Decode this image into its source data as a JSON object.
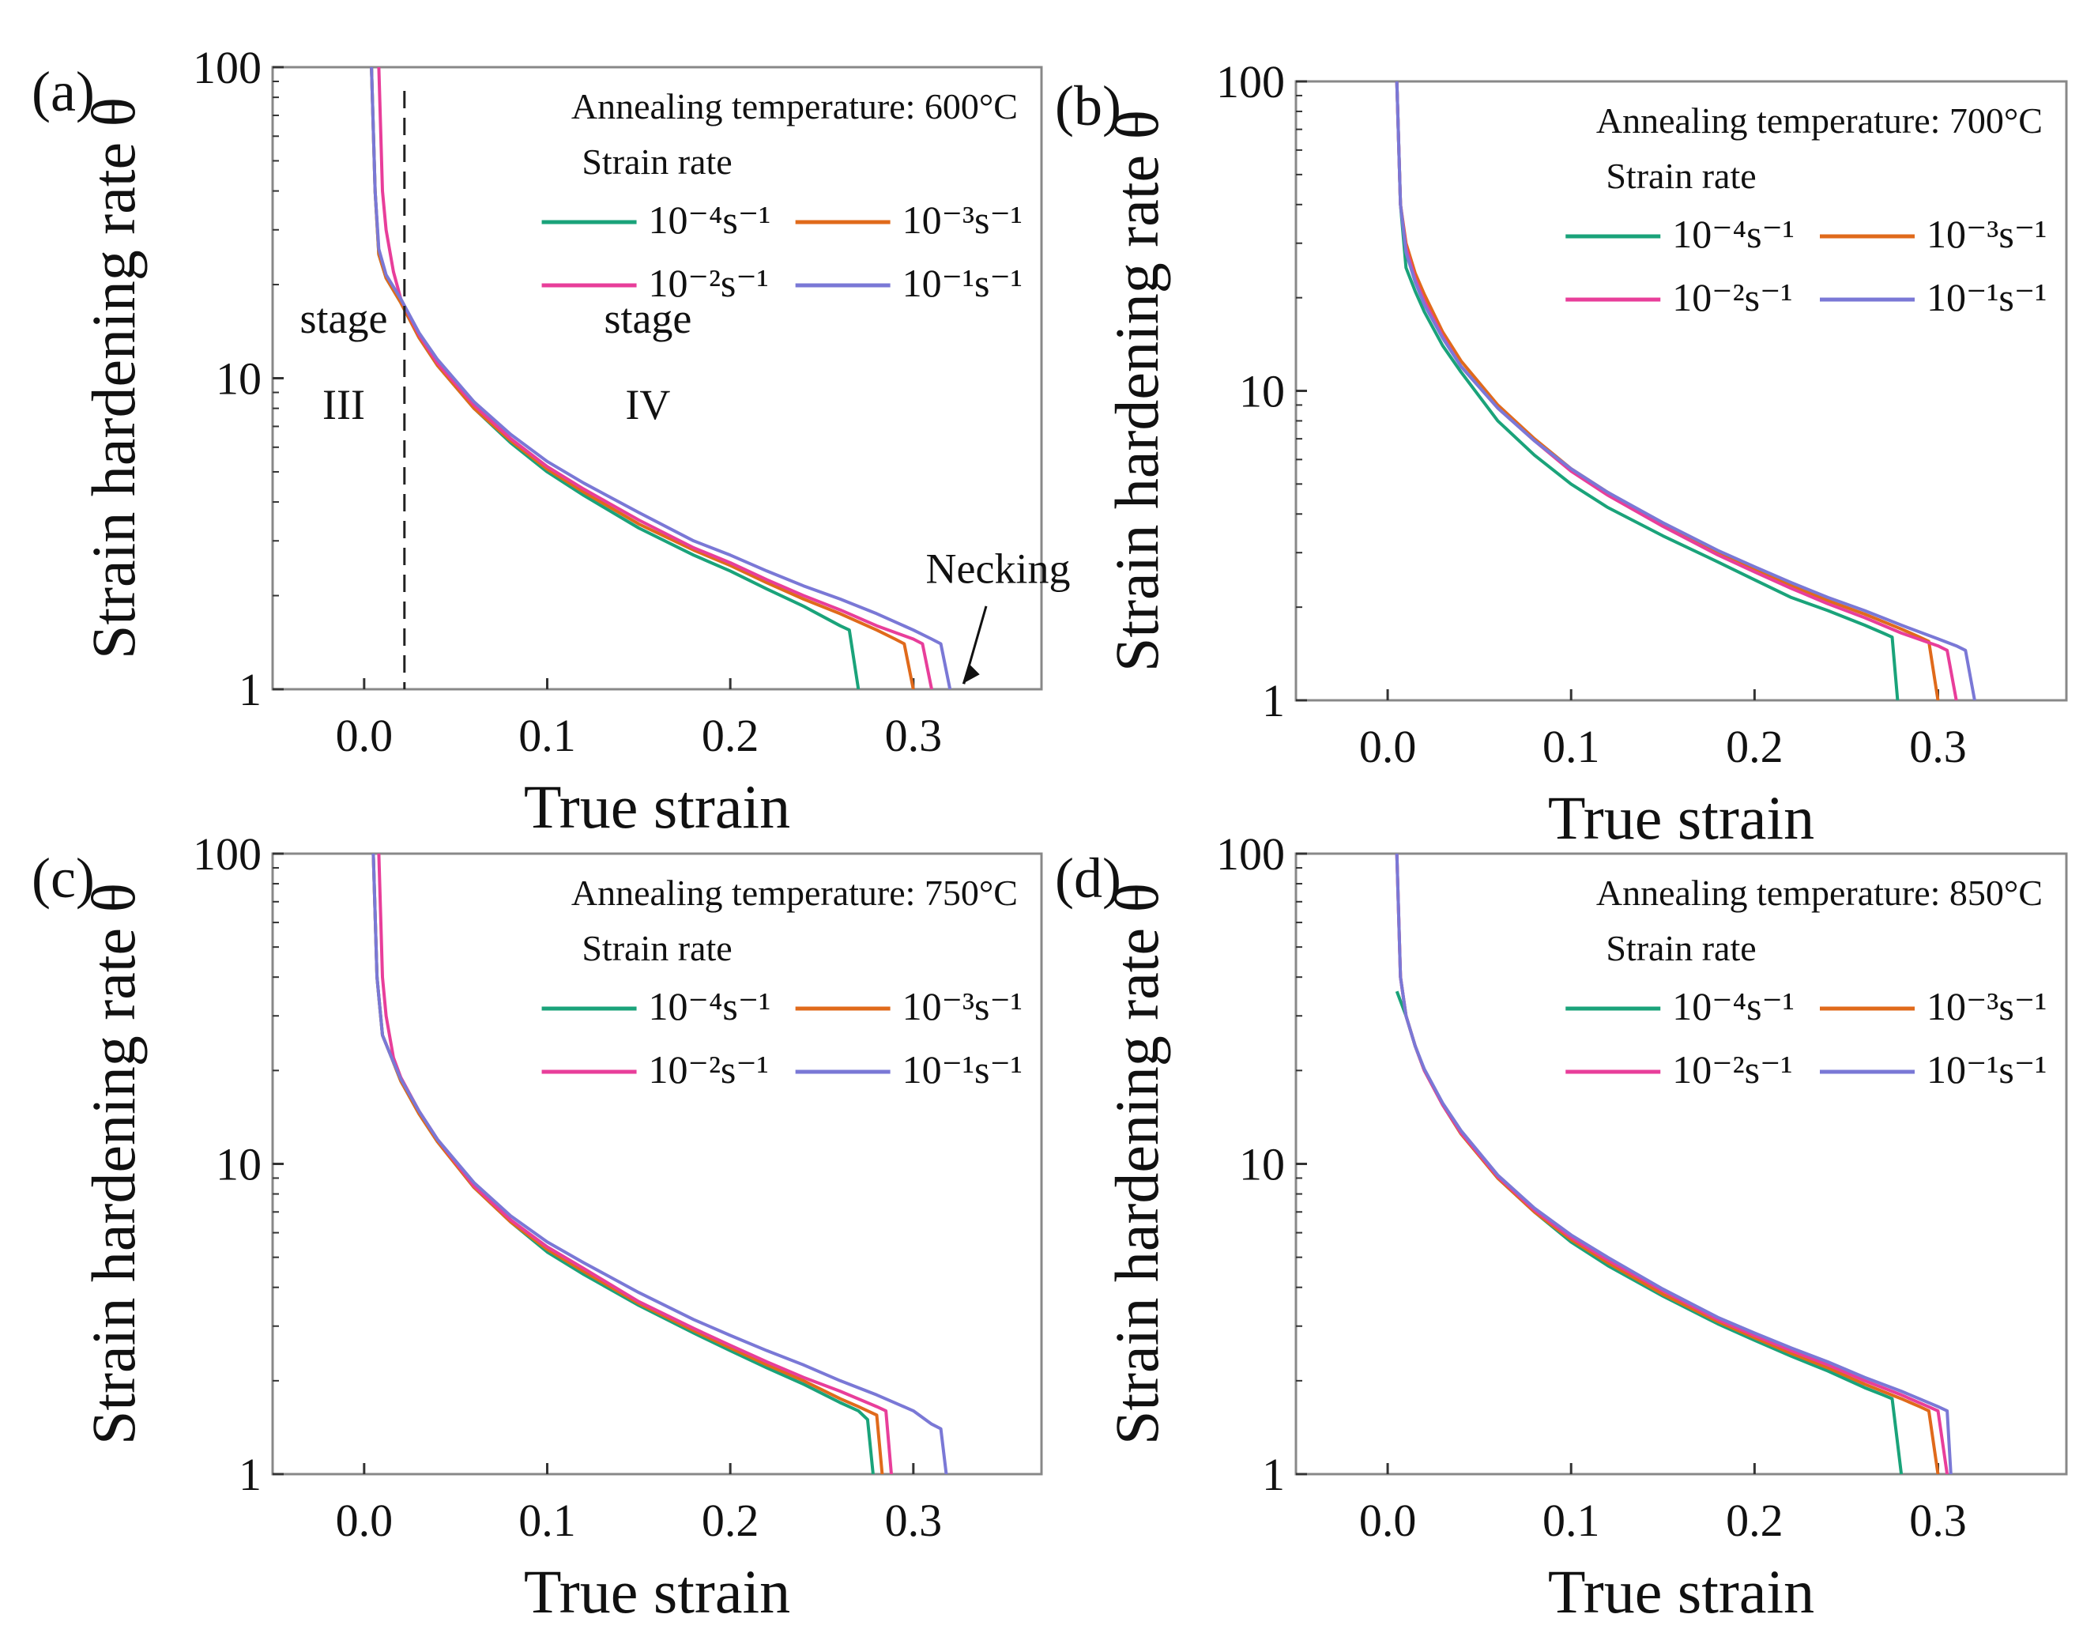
{
  "figure": {
    "description_free": true
  },
  "colors": {
    "1e-4": "#1aa37a",
    "1e-3": "#e06a1b",
    "1e-2": "#e83e9a",
    "1e-1": "#7a78d6",
    "axis": "#333333",
    "frame": "#888888"
  },
  "chart_data": [
    {
      "panel": "(a)",
      "type": "line",
      "xlabel": "True strain",
      "ylabel": "Strain hardening rate θ",
      "xlim": [
        -0.05,
        0.37
      ],
      "ylim": [
        1,
        100
      ],
      "yscale": "log",
      "xticks": [
        "0.0",
        "0.1",
        "0.2",
        "0.3"
      ],
      "xtick_values": [
        0.0,
        0.1,
        0.2,
        0.3
      ],
      "yticks": [
        "1",
        "10",
        "100"
      ],
      "legend_title": "Annealing temperature: 600°C",
      "legend_subtitle": "Strain rate",
      "legend_placement": "top-right",
      "series": [
        {
          "name": "10⁻⁴s⁻¹",
          "key": "1e-4",
          "x": [
            0.004,
            0.006,
            0.008,
            0.012,
            0.02,
            0.03,
            0.04,
            0.06,
            0.08,
            0.1,
            0.12,
            0.15,
            0.18,
            0.2,
            0.22,
            0.24,
            0.26,
            0.265,
            0.27
          ],
          "y": [
            100,
            40,
            25,
            21,
            17.5,
            13.5,
            11,
            8,
            6.2,
            5,
            4.2,
            3.3,
            2.7,
            2.4,
            2.1,
            1.85,
            1.6,
            1.55,
            1
          ]
        },
        {
          "name": "10⁻³s⁻¹",
          "key": "1e-3",
          "x": [
            0.004,
            0.006,
            0.008,
            0.012,
            0.02,
            0.03,
            0.04,
            0.06,
            0.08,
            0.1,
            0.12,
            0.15,
            0.18,
            0.2,
            0.22,
            0.24,
            0.26,
            0.28,
            0.29,
            0.295,
            0.3
          ],
          "y": [
            100,
            40,
            25,
            21,
            17.5,
            13.5,
            11,
            8,
            6.3,
            5.1,
            4.3,
            3.4,
            2.8,
            2.5,
            2.2,
            1.95,
            1.75,
            1.55,
            1.45,
            1.4,
            1
          ]
        },
        {
          "name": "10⁻²s⁻¹",
          "key": "1e-2",
          "x": [
            0.008,
            0.01,
            0.012,
            0.016,
            0.02,
            0.03,
            0.04,
            0.06,
            0.08,
            0.1,
            0.12,
            0.15,
            0.18,
            0.2,
            0.22,
            0.24,
            0.26,
            0.28,
            0.3,
            0.305,
            0.31
          ],
          "y": [
            100,
            40,
            30,
            22,
            18,
            13.8,
            11.2,
            8.2,
            6.4,
            5.2,
            4.4,
            3.5,
            2.85,
            2.55,
            2.25,
            2.0,
            1.8,
            1.6,
            1.45,
            1.4,
            1
          ]
        },
        {
          "name": "10⁻¹s⁻¹",
          "key": "1e-1",
          "x": [
            0.004,
            0.006,
            0.008,
            0.012,
            0.02,
            0.03,
            0.04,
            0.06,
            0.08,
            0.1,
            0.12,
            0.15,
            0.18,
            0.2,
            0.22,
            0.24,
            0.26,
            0.28,
            0.3,
            0.31,
            0.315,
            0.32
          ],
          "y": [
            100,
            40,
            26,
            21.5,
            18,
            14,
            11.5,
            8.4,
            6.6,
            5.4,
            4.6,
            3.7,
            3.0,
            2.7,
            2.4,
            2.15,
            1.95,
            1.75,
            1.55,
            1.45,
            1.4,
            1
          ]
        }
      ],
      "annotations": {
        "stage_left": "stage",
        "stage_left_num": "III",
        "stage_right": "stage",
        "stage_right_num": "IV",
        "divider_x": 0.022,
        "necking": "Necking"
      }
    },
    {
      "panel": "(b)",
      "type": "line",
      "xlabel": "True strain",
      "ylabel": "Strain hardening rate θ",
      "xlim": [
        -0.05,
        0.37
      ],
      "ylim": [
        1,
        100
      ],
      "yscale": "log",
      "xticks": [
        "0.0",
        "0.1",
        "0.2",
        "0.3"
      ],
      "xtick_values": [
        0.0,
        0.1,
        0.2,
        0.3
      ],
      "yticks": [
        "1",
        "10",
        "100"
      ],
      "legend_title": "Annealing temperature: 700°C",
      "legend_subtitle": "Strain rate",
      "legend_placement": "top-right",
      "series": [
        {
          "name": "10⁻⁴s⁻¹",
          "key": "1e-4",
          "x": [
            0.005,
            0.007,
            0.01,
            0.015,
            0.02,
            0.03,
            0.04,
            0.06,
            0.08,
            0.1,
            0.12,
            0.15,
            0.18,
            0.2,
            0.22,
            0.24,
            0.26,
            0.27,
            0.275,
            0.278
          ],
          "y": [
            100,
            40,
            25,
            21,
            18,
            14,
            11.5,
            8,
            6.2,
            5,
            4.2,
            3.4,
            2.8,
            2.45,
            2.15,
            1.95,
            1.75,
            1.65,
            1.6,
            1
          ]
        },
        {
          "name": "10⁻³s⁻¹",
          "key": "1e-3",
          "x": [
            0.005,
            0.007,
            0.01,
            0.015,
            0.02,
            0.03,
            0.04,
            0.06,
            0.08,
            0.1,
            0.12,
            0.15,
            0.18,
            0.2,
            0.22,
            0.24,
            0.26,
            0.28,
            0.29,
            0.295,
            0.3
          ],
          "y": [
            100,
            40,
            30,
            24,
            20.5,
            15.5,
            12.5,
            9,
            7,
            5.6,
            4.7,
            3.7,
            3.0,
            2.65,
            2.35,
            2.1,
            1.9,
            1.7,
            1.6,
            1.55,
            1
          ]
        },
        {
          "name": "10⁻²s⁻¹",
          "key": "1e-2",
          "x": [
            0.005,
            0.007,
            0.01,
            0.015,
            0.02,
            0.03,
            0.04,
            0.06,
            0.08,
            0.1,
            0.12,
            0.15,
            0.18,
            0.2,
            0.22,
            0.24,
            0.26,
            0.28,
            0.3,
            0.305,
            0.31
          ],
          "y": [
            100,
            40,
            29,
            23,
            19.5,
            15,
            12,
            8.8,
            6.9,
            5.5,
            4.6,
            3.65,
            2.95,
            2.6,
            2.3,
            2.05,
            1.85,
            1.65,
            1.5,
            1.45,
            1
          ]
        },
        {
          "name": "10⁻¹s⁻¹",
          "key": "1e-1",
          "x": [
            0.005,
            0.007,
            0.01,
            0.015,
            0.02,
            0.03,
            0.04,
            0.06,
            0.08,
            0.1,
            0.12,
            0.15,
            0.18,
            0.2,
            0.22,
            0.24,
            0.26,
            0.28,
            0.3,
            0.31,
            0.315,
            0.32
          ],
          "y": [
            100,
            40,
            28,
            22.5,
            19,
            14.8,
            12,
            8.8,
            6.9,
            5.6,
            4.7,
            3.75,
            3.05,
            2.7,
            2.4,
            2.15,
            1.95,
            1.75,
            1.58,
            1.5,
            1.45,
            1
          ]
        }
      ]
    },
    {
      "panel": "(c)",
      "type": "line",
      "xlabel": "True strain",
      "ylabel": "Strain hardening rate θ",
      "xlim": [
        -0.05,
        0.37
      ],
      "ylim": [
        1,
        100
      ],
      "yscale": "log",
      "xticks": [
        "0.0",
        "0.1",
        "0.2",
        "0.3"
      ],
      "xtick_values": [
        0.0,
        0.1,
        0.2,
        0.3
      ],
      "yticks": [
        "1",
        "10",
        "100"
      ],
      "legend_title": "Annealing temperature: 750°C",
      "legend_subtitle": "Strain rate",
      "legend_placement": "top-right",
      "series": [
        {
          "name": "10⁻⁴s⁻¹",
          "key": "1e-4",
          "x": [
            0.005,
            0.007,
            0.01,
            0.015,
            0.02,
            0.03,
            0.04,
            0.06,
            0.08,
            0.1,
            0.12,
            0.15,
            0.18,
            0.2,
            0.22,
            0.24,
            0.26,
            0.27,
            0.275,
            0.278
          ],
          "y": [
            100,
            40,
            26,
            22,
            18.5,
            14.5,
            11.8,
            8.4,
            6.5,
            5.2,
            4.4,
            3.5,
            2.85,
            2.5,
            2.2,
            1.95,
            1.7,
            1.6,
            1.5,
            1
          ]
        },
        {
          "name": "10⁻³s⁻¹",
          "key": "1e-3",
          "x": [
            0.005,
            0.007,
            0.01,
            0.015,
            0.02,
            0.03,
            0.04,
            0.06,
            0.08,
            0.1,
            0.12,
            0.15,
            0.18,
            0.2,
            0.22,
            0.24,
            0.26,
            0.27,
            0.28,
            0.283
          ],
          "y": [
            100,
            40,
            26,
            22,
            18.5,
            14.5,
            11.8,
            8.4,
            6.5,
            5.3,
            4.5,
            3.55,
            2.9,
            2.55,
            2.25,
            2.0,
            1.75,
            1.65,
            1.55,
            1
          ]
        },
        {
          "name": "10⁻²s⁻¹",
          "key": "1e-2",
          "x": [
            0.008,
            0.01,
            0.012,
            0.016,
            0.02,
            0.03,
            0.04,
            0.06,
            0.08,
            0.1,
            0.12,
            0.15,
            0.18,
            0.2,
            0.22,
            0.24,
            0.26,
            0.28,
            0.285,
            0.288
          ],
          "y": [
            100,
            40,
            30,
            22,
            19,
            14.8,
            12,
            8.5,
            6.6,
            5.4,
            4.6,
            3.6,
            2.95,
            2.6,
            2.3,
            2.05,
            1.85,
            1.65,
            1.6,
            1
          ]
        },
        {
          "name": "10⁻¹s⁻¹",
          "key": "1e-1",
          "x": [
            0.005,
            0.007,
            0.01,
            0.015,
            0.02,
            0.03,
            0.04,
            0.06,
            0.08,
            0.1,
            0.12,
            0.15,
            0.18,
            0.2,
            0.22,
            0.24,
            0.26,
            0.28,
            0.3,
            0.31,
            0.315,
            0.318
          ],
          "y": [
            100,
            40,
            26,
            22,
            18.8,
            14.8,
            12,
            8.7,
            6.8,
            5.6,
            4.8,
            3.85,
            3.15,
            2.8,
            2.5,
            2.25,
            2.0,
            1.8,
            1.6,
            1.45,
            1.4,
            1
          ]
        }
      ]
    },
    {
      "panel": "(d)",
      "type": "line",
      "xlabel": "True strain",
      "ylabel": "Strain hardening rate θ",
      "xlim": [
        -0.05,
        0.37
      ],
      "ylim": [
        1,
        100
      ],
      "yscale": "log",
      "xticks": [
        "0.0",
        "0.1",
        "0.2",
        "0.3"
      ],
      "xtick_values": [
        0.0,
        0.1,
        0.2,
        0.3
      ],
      "yticks": [
        "1",
        "10",
        "100"
      ],
      "legend_title": "Annealing temperature: 850°C",
      "legend_subtitle": "Strain rate",
      "legend_placement": "top-right",
      "series": [
        {
          "name": "10⁻⁴s⁻¹",
          "key": "1e-4",
          "x": [
            0.005,
            0.01,
            0.015,
            0.02,
            0.03,
            0.04,
            0.06,
            0.08,
            0.1,
            0.12,
            0.15,
            0.18,
            0.2,
            0.22,
            0.24,
            0.26,
            0.27,
            0.275,
            0.28
          ],
          "y": [
            36,
            30,
            24,
            20,
            15.5,
            12.5,
            9,
            7,
            5.6,
            4.7,
            3.75,
            3.05,
            2.7,
            2.4,
            2.15,
            1.9,
            1.8,
            1.75,
            1
          ]
        },
        {
          "name": "10⁻³s⁻¹",
          "key": "1e-3",
          "x": [
            0.005,
            0.007,
            0.01,
            0.015,
            0.02,
            0.03,
            0.04,
            0.06,
            0.08,
            0.1,
            0.12,
            0.15,
            0.18,
            0.2,
            0.22,
            0.24,
            0.26,
            0.28,
            0.29,
            0.295,
            0.3
          ],
          "y": [
            100,
            40,
            30,
            24,
            20,
            15.5,
            12.5,
            9,
            7,
            5.7,
            4.8,
            3.8,
            3.1,
            2.75,
            2.45,
            2.2,
            1.95,
            1.75,
            1.65,
            1.6,
            1
          ]
        },
        {
          "name": "10⁻²s⁻¹",
          "key": "1e-2",
          "x": [
            0.005,
            0.007,
            0.01,
            0.015,
            0.02,
            0.03,
            0.04,
            0.06,
            0.08,
            0.1,
            0.12,
            0.15,
            0.18,
            0.2,
            0.22,
            0.24,
            0.26,
            0.28,
            0.3,
            0.305
          ],
          "y": [
            100,
            40,
            30,
            24,
            20,
            15.5,
            12.6,
            9.1,
            7.1,
            5.8,
            4.9,
            3.9,
            3.15,
            2.8,
            2.5,
            2.25,
            2.0,
            1.8,
            1.6,
            1
          ]
        },
        {
          "name": "10⁻¹s⁻¹",
          "key": "1e-1",
          "x": [
            0.005,
            0.007,
            0.01,
            0.015,
            0.02,
            0.03,
            0.04,
            0.06,
            0.08,
            0.1,
            0.12,
            0.15,
            0.18,
            0.2,
            0.22,
            0.24,
            0.26,
            0.28,
            0.3,
            0.305,
            0.307
          ],
          "y": [
            100,
            40,
            30,
            24,
            20.2,
            15.7,
            12.8,
            9.2,
            7.2,
            5.9,
            5.0,
            3.95,
            3.2,
            2.85,
            2.55,
            2.3,
            2.05,
            1.85,
            1.65,
            1.6,
            1
          ]
        }
      ]
    }
  ]
}
